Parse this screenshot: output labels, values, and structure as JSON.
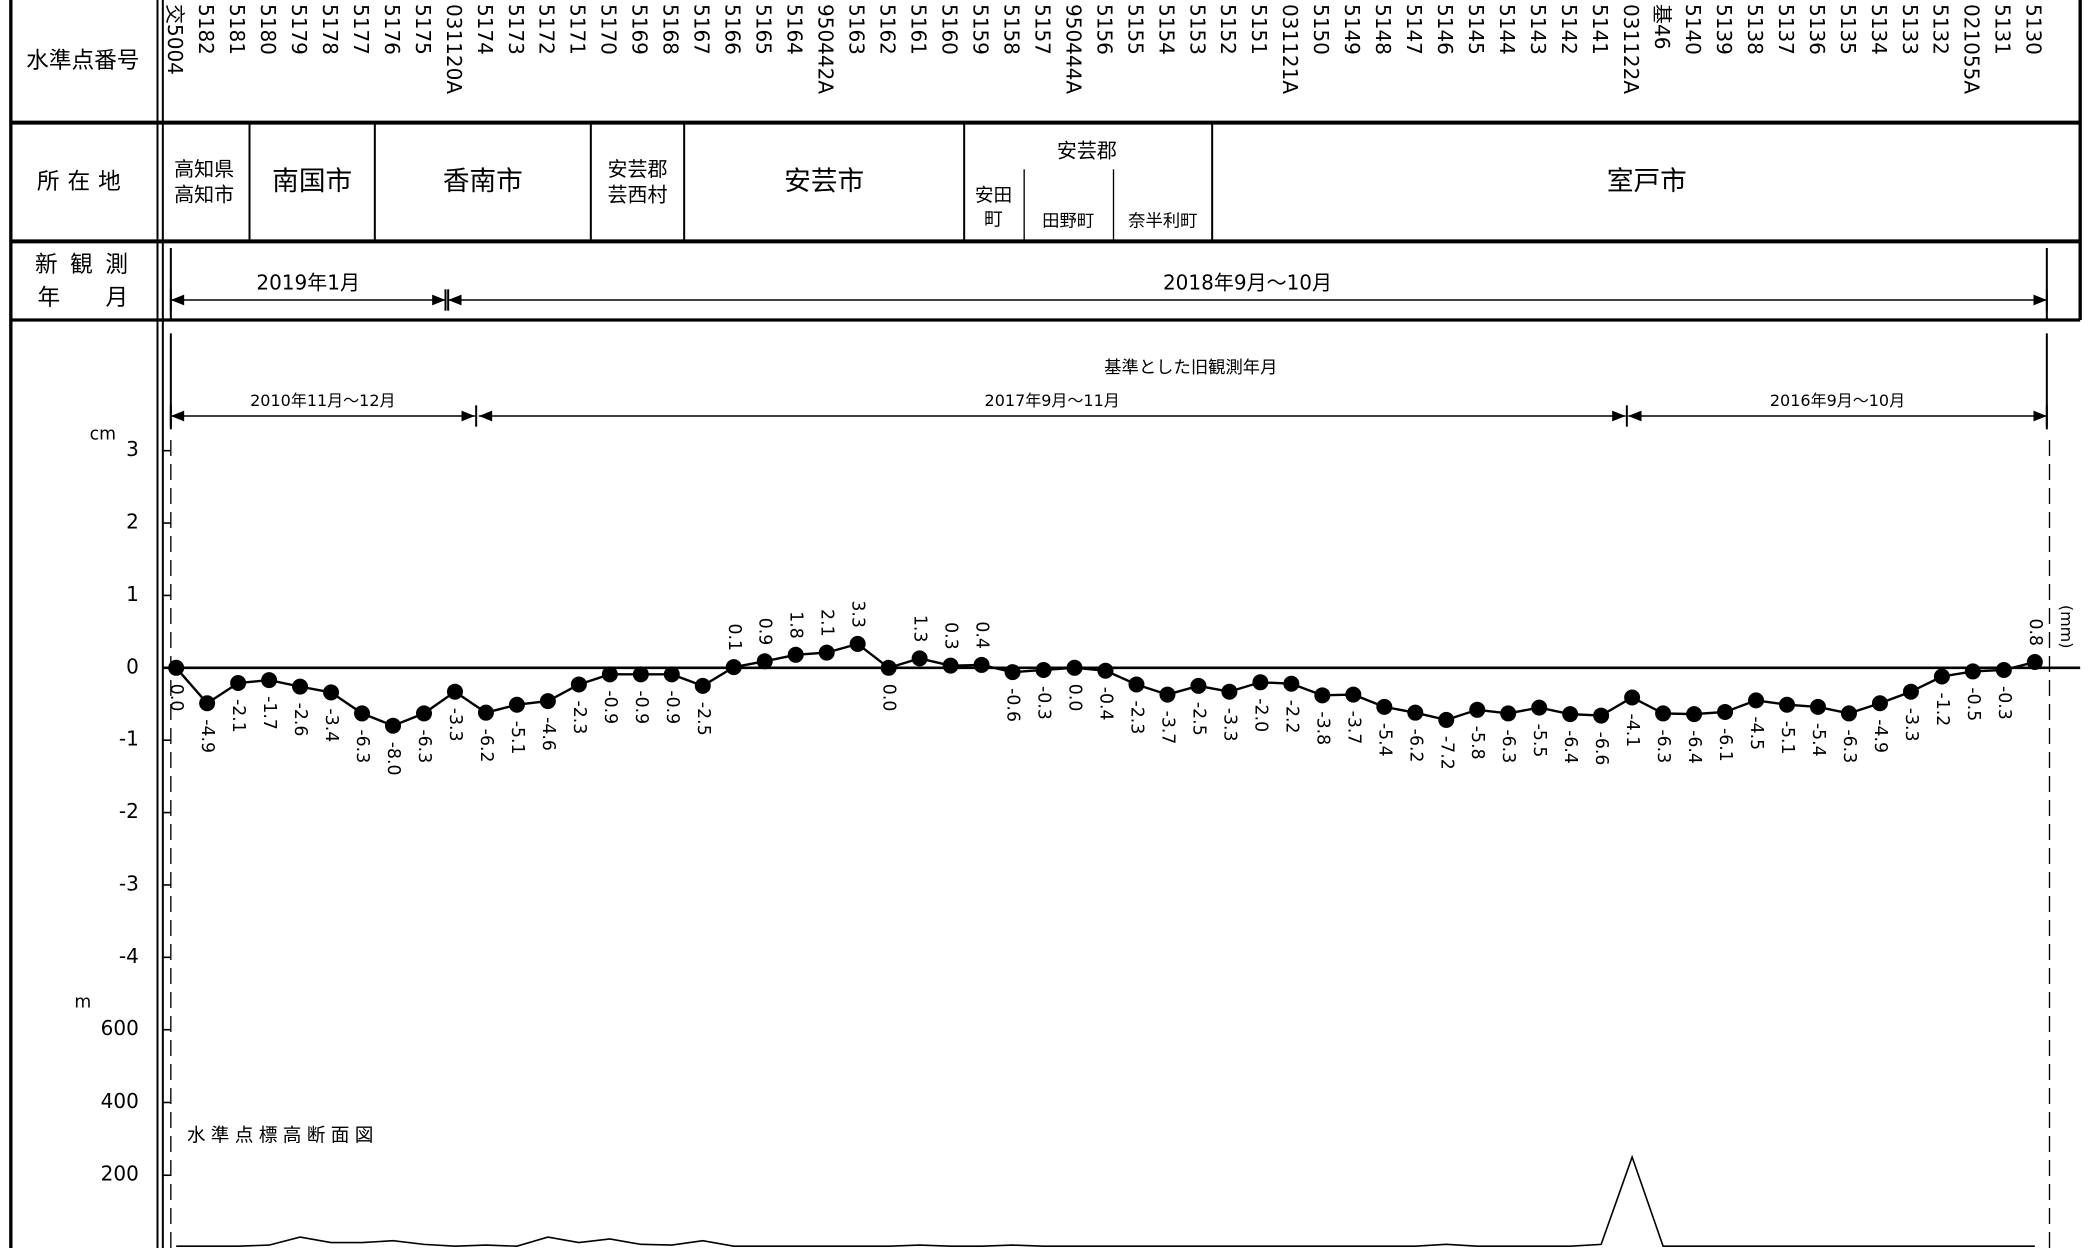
{
  "header": {
    "benchmark_label": "水準点番号",
    "location_label": "所在地",
    "survey_label": [
      "新 観 測",
      "年　　月"
    ],
    "locations": [
      [
        "高知県",
        "高知市"
      ],
      [
        "南国市"
      ],
      [
        "香南市"
      ],
      [
        "安芸郡",
        "芸西村"
      ],
      [
        "安芸市"
      ],
      [
        "安田",
        "町"
      ],
      [
        "田野町"
      ],
      [
        "奈半利町"
      ],
      [
        "室戸市"
      ]
    ],
    "location_group": "安芸郡",
    "new_survey_periods": [
      "2019年1月",
      "2018年9月～10月"
    ]
  },
  "chart_data": [
    {
      "type": "line",
      "y_unit_label": "cm",
      "value_unit_label": "(mm)",
      "reference_title": "基準とした旧観測年月",
      "reference_periods": [
        "2010年11月～12月",
        "2017年9月～11月",
        "2016年9月～10月"
      ],
      "categories": [
        "交5004",
        "5182",
        "5181",
        "5180",
        "5179",
        "5178",
        "5177",
        "5176",
        "5175",
        "031120A",
        "5174",
        "5173",
        "5172",
        "5171",
        "5170",
        "5169",
        "5168",
        "5167",
        "5166",
        "5165",
        "5164",
        "950442A",
        "5163",
        "5162",
        "5161",
        "5160",
        "5159",
        "5158",
        "5157",
        "950444A",
        "5156",
        "5155",
        "5154",
        "5153",
        "5152",
        "5151",
        "031121A",
        "5150",
        "5149",
        "5148",
        "5147",
        "5146",
        "5145",
        "5144",
        "5143",
        "5142",
        "5141",
        "031122A",
        "基46",
        "5140",
        "5139",
        "5138",
        "5137",
        "5136",
        "5135",
        "5134",
        "5133",
        "5132",
        "021055A",
        "5131",
        "5130"
      ],
      "values": [
        0,
        -0.49,
        -0.21,
        -0.17,
        -0.26,
        -0.34,
        -0.63,
        -0.8,
        -0.63,
        -0.33,
        -0.62,
        -0.51,
        -0.46,
        -0.23,
        -0.09,
        -0.09,
        -0.09,
        -0.25,
        0.01,
        0.09,
        0.18,
        0.21,
        0.33,
        0,
        0.13,
        0.03,
        0.04,
        -0.06,
        -0.03,
        0,
        -0.04,
        -0.23,
        -0.37,
        -0.25,
        -0.33,
        -0.2,
        -0.22,
        -0.38,
        -0.37,
        -0.54,
        -0.62,
        -0.72,
        -0.58,
        -0.63,
        -0.55,
        -0.64,
        -0.66,
        -0.41,
        -0.63,
        -0.64,
        -0.61,
        -0.45,
        -0.51,
        -0.54,
        -0.63,
        -0.49,
        -0.33,
        -0.12,
        -0.05,
        -0.03,
        0.08
      ],
      "value_labels": [
        "0.0",
        "-4.9",
        "-2.1",
        "-1.7",
        "-2.6",
        "-3.4",
        "-6.3",
        "-8.0",
        "-6.3",
        "-3.3",
        "-6.2",
        "-5.1",
        "-4.6",
        "-2.3",
        "-0.9",
        "-0.9",
        "-0.9",
        "-2.5",
        "0.1",
        "0.9",
        "1.8",
        "2.1",
        "3.3",
        "0.0",
        "1.3",
        "0.3",
        "0.4",
        "-0.6",
        "-0.3",
        "0.0",
        "-0.4",
        "-2.3",
        "-3.7",
        "-2.5",
        "-3.3",
        "-2.0",
        "-2.2",
        "-3.8",
        "-3.7",
        "-5.4",
        "-6.2",
        "-7.2",
        "-5.8",
        "-6.3",
        "-5.5",
        "-6.4",
        "-6.6",
        "-4.1",
        "-6.3",
        "-6.4",
        "-6.1",
        "-4.5",
        "-5.1",
        "-5.4",
        "-6.3",
        "-4.9",
        "-3.3",
        "-1.2",
        "-0.5",
        "-0.3",
        "0.8"
      ],
      "color": "#000000",
      "ylim": [
        -4,
        3
      ],
      "yticks": [
        -4,
        -3,
        -2,
        -1,
        0,
        1,
        2,
        3
      ],
      "zero_line": true
    },
    {
      "type": "line",
      "title": "水準点標高断面図",
      "y_unit_label": "m",
      "values": [
        5,
        5,
        5,
        8,
        30,
        15,
        15,
        20,
        10,
        5,
        8,
        5,
        30,
        15,
        25,
        10,
        8,
        20,
        5,
        5,
        5,
        5,
        5,
        5,
        8,
        5,
        5,
        8,
        5,
        5,
        5,
        5,
        5,
        5,
        5,
        5,
        5,
        5,
        5,
        5,
        5,
        10,
        5,
        5,
        5,
        5,
        10,
        250,
        5,
        5,
        5,
        5,
        5,
        5,
        5,
        5,
        5,
        5,
        5,
        5,
        5
      ],
      "color": "#000000",
      "ylim": [
        0,
        700
      ],
      "yticks": [
        200,
        400,
        600
      ]
    }
  ]
}
